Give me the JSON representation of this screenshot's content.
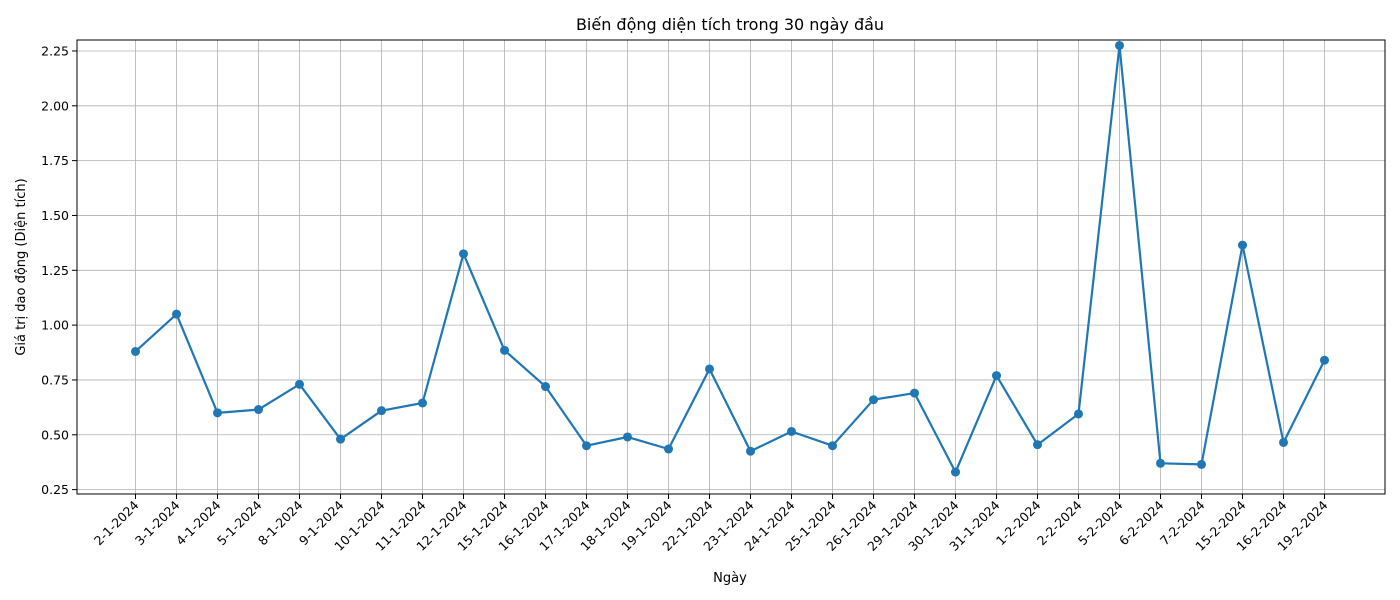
{
  "chart_data": {
    "type": "line",
    "title": "Biến động diện tích trong 30 ngày đầu",
    "xlabel": "Ngày",
    "ylabel": "Giá trị dao động (Diện tích)",
    "ylim": [
      0.23,
      2.3
    ],
    "yticks": [
      "0.25",
      "0.50",
      "0.75",
      "1.00",
      "1.25",
      "1.50",
      "1.75",
      "2.00",
      "2.25"
    ],
    "grid": true,
    "color": "#1f77b4",
    "categories": [
      "2-1-2024",
      "3-1-2024",
      "4-1-2024",
      "5-1-2024",
      "8-1-2024",
      "9-1-2024",
      "10-1-2024",
      "11-1-2024",
      "12-1-2024",
      "15-1-2024",
      "16-1-2024",
      "17-1-2024",
      "18-1-2024",
      "19-1-2024",
      "22-1-2024",
      "23-1-2024",
      "24-1-2024",
      "25-1-2024",
      "26-1-2024",
      "29-1-2024",
      "30-1-2024",
      "31-1-2024",
      "1-2-2024",
      "2-2-2024",
      "5-2-2024",
      "6-2-2024",
      "7-2-2024",
      "15-2-2024",
      "16-2-2024",
      "19-2-2024"
    ],
    "values": [
      0.88,
      1.05,
      0.6,
      0.615,
      0.73,
      0.48,
      0.61,
      0.645,
      1.325,
      0.885,
      0.72,
      0.45,
      0.49,
      0.435,
      0.8,
      0.425,
      0.515,
      0.45,
      0.66,
      0.69,
      0.33,
      0.77,
      0.455,
      0.595,
      2.275,
      0.37,
      0.365,
      1.365,
      0.465,
      0.84
    ]
  }
}
